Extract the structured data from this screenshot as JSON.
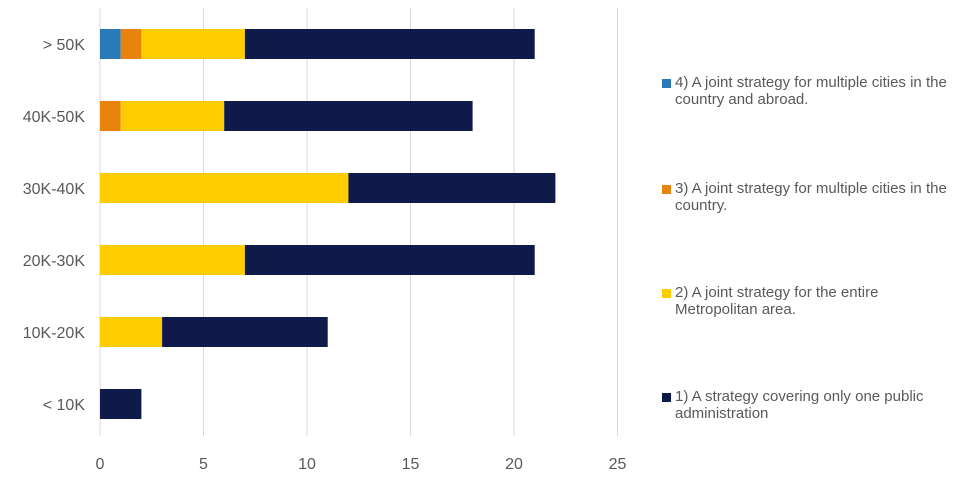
{
  "chart_data": {
    "type": "bar",
    "orientation": "horizontal",
    "stacked": true,
    "categories": [
      "> 50K",
      "40K-50K",
      "30K-40K",
      "20K-30K",
      "10K-20K",
      "< 10K"
    ],
    "series": [
      {
        "name": "1) A strategy covering only one public administration",
        "color": "#0f1a4a",
        "values": [
          14,
          12,
          10,
          14,
          8,
          2
        ]
      },
      {
        "name": "2) A joint strategy for the entire Metropolitan area.",
        "color": "#ffcc00",
        "values": [
          5,
          5,
          12,
          7,
          3,
          0
        ]
      },
      {
        "name": "3) A joint strategy for multiple cities in the country.",
        "color": "#e8830c",
        "values": [
          1,
          1,
          0,
          0,
          0,
          0
        ]
      },
      {
        "name": "4) A joint strategy for multiple cities in the country and abroad.",
        "color": "#2a7ab8",
        "values": [
          1,
          0,
          0,
          0,
          0,
          0
        ]
      }
    ],
    "xlim": [
      0,
      25
    ],
    "xticks": [
      "0",
      "5",
      "10",
      "15",
      "20",
      "25"
    ],
    "grid": "vertical",
    "legend_position": "right",
    "title": "",
    "xlabel": "",
    "ylabel": ""
  },
  "legend": {
    "items": [
      {
        "label": "4) A joint strategy for multiple cities in the country and abroad.",
        "color": "#2a7ab8"
      },
      {
        "label": "3) A joint strategy for multiple cities in the country.",
        "color": "#e8830c"
      },
      {
        "label": "2) A joint strategy for the entire Metropolitan area.",
        "color": "#ffcc00"
      },
      {
        "label": "1) A strategy covering only one public administration",
        "color": "#0f1a4a"
      }
    ]
  }
}
